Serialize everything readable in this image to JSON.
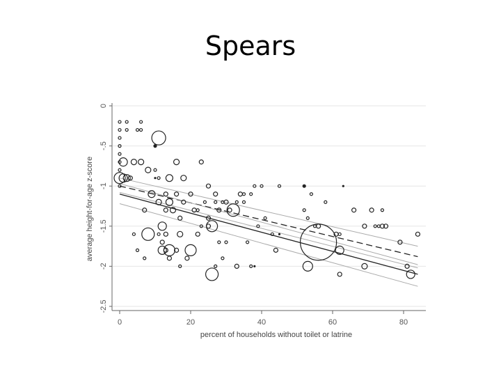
{
  "slide": {
    "title": "Spears"
  },
  "chart_data": {
    "type": "scatter",
    "title": "",
    "xlabel": "percent of households without toilet or latrine",
    "ylabel": "average height-for-age z-score",
    "xlim": [
      -2,
      85
    ],
    "ylim": [
      -2.5,
      0
    ],
    "x_ticks": [
      0,
      20,
      40,
      60,
      80
    ],
    "y_ticks": [
      0,
      -0.5,
      -1,
      -1.5,
      -2,
      -2.5
    ],
    "y_tick_labels": [
      "0",
      "-.5",
      "-1",
      "-1.5",
      "-2",
      "-2.5"
    ],
    "grid": "horizontal",
    "legend": "none",
    "points": [
      {
        "x": 0,
        "y": -0.2,
        "s": 2
      },
      {
        "x": 0,
        "y": -0.3,
        "s": 2
      },
      {
        "x": 0,
        "y": -0.4,
        "s": 2
      },
      {
        "x": 0,
        "y": -0.5,
        "s": 2
      },
      {
        "x": 0,
        "y": -0.6,
        "s": 2
      },
      {
        "x": 0,
        "y": -0.7,
        "s": 2
      },
      {
        "x": 0,
        "y": -0.8,
        "s": 2
      },
      {
        "x": 0,
        "y": -0.9,
        "s": 8
      },
      {
        "x": 0,
        "y": -1.0,
        "s": 2
      },
      {
        "x": 1,
        "y": -0.9,
        "s": 6
      },
      {
        "x": 1,
        "y": -0.7,
        "s": 6
      },
      {
        "x": 2,
        "y": -0.9,
        "s": 5
      },
      {
        "x": 2,
        "y": -0.2,
        "s": 2
      },
      {
        "x": 2,
        "y": -0.3,
        "s": 2
      },
      {
        "x": 3,
        "y": -0.9,
        "s": 3
      },
      {
        "x": 4,
        "y": -0.7,
        "s": 4
      },
      {
        "x": 5,
        "y": -0.3,
        "s": 2
      },
      {
        "x": 6,
        "y": -0.3,
        "s": 2
      },
      {
        "x": 6,
        "y": -0.2,
        "s": 2
      },
      {
        "x": 6,
        "y": -0.7,
        "s": 4
      },
      {
        "x": 8,
        "y": -0.8,
        "s": 4
      },
      {
        "x": 4,
        "y": -1.6,
        "s": 2
      },
      {
        "x": 5,
        "y": -1.8,
        "s": 2
      },
      {
        "x": 7,
        "y": -1.3,
        "s": 3
      },
      {
        "x": 7,
        "y": -1.9,
        "s": 2
      },
      {
        "x": 9,
        "y": -1.1,
        "s": 5
      },
      {
        "x": 8,
        "y": -1.6,
        "s": 9
      },
      {
        "x": 11,
        "y": -0.4,
        "s": 10
      },
      {
        "x": 10,
        "y": -0.5,
        "s": 2
      },
      {
        "x": 10,
        "y": -0.8,
        "s": 2
      },
      {
        "x": 11,
        "y": -0.9,
        "s": 2
      },
      {
        "x": 11,
        "y": -1.2,
        "s": 4
      },
      {
        "x": 11,
        "y": -1.6,
        "s": 2
      },
      {
        "x": 12,
        "y": -1.5,
        "s": 6
      },
      {
        "x": 12,
        "y": -1.8,
        "s": 6
      },
      {
        "x": 12,
        "y": -1.7,
        "s": 3
      },
      {
        "x": 13,
        "y": -1.1,
        "s": 3
      },
      {
        "x": 13,
        "y": -1.3,
        "s": 3
      },
      {
        "x": 13,
        "y": -1.6,
        "s": 3
      },
      {
        "x": 13,
        "y": -1.8,
        "s": 3
      },
      {
        "x": 14,
        "y": -0.9,
        "s": 5
      },
      {
        "x": 14,
        "y": -1.2,
        "s": 5
      },
      {
        "x": 14,
        "y": -1.8,
        "s": 8
      },
      {
        "x": 14,
        "y": -1.9,
        "s": 3
      },
      {
        "x": 15,
        "y": -1.3,
        "s": 4
      },
      {
        "x": 16,
        "y": -0.7,
        "s": 4
      },
      {
        "x": 16,
        "y": -1.1,
        "s": 3
      },
      {
        "x": 16,
        "y": -1.8,
        "s": 3
      },
      {
        "x": 17,
        "y": -1.4,
        "s": 3
      },
      {
        "x": 17,
        "y": -1.6,
        "s": 4
      },
      {
        "x": 17,
        "y": -2.0,
        "s": 2
      },
      {
        "x": 18,
        "y": -0.9,
        "s": 4
      },
      {
        "x": 18,
        "y": -1.2,
        "s": 3
      },
      {
        "x": 19,
        "y": -1.9,
        "s": 3
      },
      {
        "x": 20,
        "y": -1.8,
        "s": 8
      },
      {
        "x": 20,
        "y": -1.1,
        "s": 3
      },
      {
        "x": 21,
        "y": -1.3,
        "s": 3
      },
      {
        "x": 22,
        "y": -1.3,
        "s": 2
      },
      {
        "x": 22,
        "y": -1.6,
        "s": 3
      },
      {
        "x": 23,
        "y": -0.7,
        "s": 3
      },
      {
        "x": 23,
        "y": -1.5,
        "s": 2
      },
      {
        "x": 24,
        "y": -1.2,
        "s": 2
      },
      {
        "x": 25,
        "y": -1.0,
        "s": 3
      },
      {
        "x": 25,
        "y": -1.4,
        "s": 3
      },
      {
        "x": 25,
        "y": -1.5,
        "s": 3
      },
      {
        "x": 26,
        "y": -1.5,
        "s": 8
      },
      {
        "x": 26,
        "y": -2.1,
        "s": 9
      },
      {
        "x": 27,
        "y": -1.1,
        "s": 3
      },
      {
        "x": 27,
        "y": -1.2,
        "s": 2
      },
      {
        "x": 27,
        "y": -2.0,
        "s": 2
      },
      {
        "x": 28,
        "y": -1.3,
        "s": 3
      },
      {
        "x": 28,
        "y": -1.7,
        "s": 2
      },
      {
        "x": 29,
        "y": -1.2,
        "s": 2
      },
      {
        "x": 29,
        "y": -1.9,
        "s": 2
      },
      {
        "x": 30,
        "y": -1.2,
        "s": 3
      },
      {
        "x": 30,
        "y": -1.7,
        "s": 2
      },
      {
        "x": 31,
        "y": -1.3,
        "s": 3
      },
      {
        "x": 32,
        "y": -1.3,
        "s": 9
      },
      {
        "x": 33,
        "y": -1.2,
        "s": 2
      },
      {
        "x": 33,
        "y": -2.0,
        "s": 3
      },
      {
        "x": 34,
        "y": -1.1,
        "s": 3
      },
      {
        "x": 35,
        "y": -1.1,
        "s": 2
      },
      {
        "x": 35,
        "y": -1.2,
        "s": 2
      },
      {
        "x": 36,
        "y": -1.7,
        "s": 2
      },
      {
        "x": 37,
        "y": -1.1,
        "s": 2
      },
      {
        "x": 37,
        "y": -2.0,
        "s": 2
      },
      {
        "x": 38,
        "y": -1.0,
        "s": 2
      },
      {
        "x": 39,
        "y": -1.5,
        "s": 2
      },
      {
        "x": 40,
        "y": -1.0,
        "s": 2
      },
      {
        "x": 41,
        "y": -1.4,
        "s": 2
      },
      {
        "x": 43,
        "y": -1.6,
        "s": 2
      },
      {
        "x": 44,
        "y": -1.8,
        "s": 3
      },
      {
        "x": 45,
        "y": -1.0,
        "s": 2
      },
      {
        "x": 52,
        "y": -1.0,
        "s": 2
      },
      {
        "x": 52,
        "y": -1.3,
        "s": 2
      },
      {
        "x": 53,
        "y": -1.4,
        "s": 2
      },
      {
        "x": 53,
        "y": -2.0,
        "s": 7
      },
      {
        "x": 54,
        "y": -1.1,
        "s": 2
      },
      {
        "x": 55,
        "y": -1.5,
        "s": 2
      },
      {
        "x": 56,
        "y": -1.5,
        "s": 3
      },
      {
        "x": 56,
        "y": -1.7,
        "s": 26
      },
      {
        "x": 58,
        "y": -1.2,
        "s": 2
      },
      {
        "x": 61,
        "y": -1.6,
        "s": 3
      },
      {
        "x": 62,
        "y": -1.6,
        "s": 2
      },
      {
        "x": 62,
        "y": -1.8,
        "s": 6
      },
      {
        "x": 62,
        "y": -2.1,
        "s": 3
      },
      {
        "x": 66,
        "y": -1.3,
        "s": 3
      },
      {
        "x": 69,
        "y": -1.5,
        "s": 3
      },
      {
        "x": 69,
        "y": -2.0,
        "s": 4
      },
      {
        "x": 71,
        "y": -1.3,
        "s": 3
      },
      {
        "x": 72,
        "y": -1.5,
        "s": 2
      },
      {
        "x": 73,
        "y": -1.5,
        "s": 2
      },
      {
        "x": 74,
        "y": -1.3,
        "s": 2
      },
      {
        "x": 74,
        "y": -1.5,
        "s": 3
      },
      {
        "x": 75,
        "y": -1.5,
        "s": 3
      },
      {
        "x": 79,
        "y": -1.7,
        "s": 3
      },
      {
        "x": 81,
        "y": -2.0,
        "s": 3
      },
      {
        "x": 82,
        "y": -2.1,
        "s": 6
      },
      {
        "x": 84,
        "y": -1.6,
        "s": 3
      }
    ],
    "filled_points": [
      {
        "x": 10,
        "y": -0.5
      },
      {
        "x": 10,
        "y": -0.9
      },
      {
        "x": 52,
        "y": -1.0
      },
      {
        "x": 38,
        "y": -2.0
      },
      {
        "x": 45,
        "y": -1.6
      },
      {
        "x": 63,
        "y": -1.0
      }
    ],
    "fit_lines": [
      {
        "style": "solid",
        "color": "#222222",
        "x": [
          0,
          84
        ],
        "y": [
          -1.1,
          -2.1
        ]
      },
      {
        "style": "dashed",
        "color": "#222222",
        "x": [
          0,
          84
        ],
        "y": [
          -1.0,
          -1.88
        ]
      },
      {
        "style": "solid",
        "color": "#aaaaaa",
        "x": [
          0,
          84
        ],
        "y": [
          -0.97,
          -1.98
        ]
      },
      {
        "style": "solid",
        "color": "#aaaaaa",
        "x": [
          0,
          84
        ],
        "y": [
          -1.22,
          -2.25
        ]
      },
      {
        "style": "solid",
        "color": "#aaaaaa",
        "x": [
          0,
          84
        ],
        "y": [
          -0.9,
          -1.75
        ]
      },
      {
        "style": "solid",
        "color": "#aaaaaa",
        "x": [
          0,
          84
        ],
        "y": [
          -1.08,
          -2.02
        ]
      }
    ]
  }
}
